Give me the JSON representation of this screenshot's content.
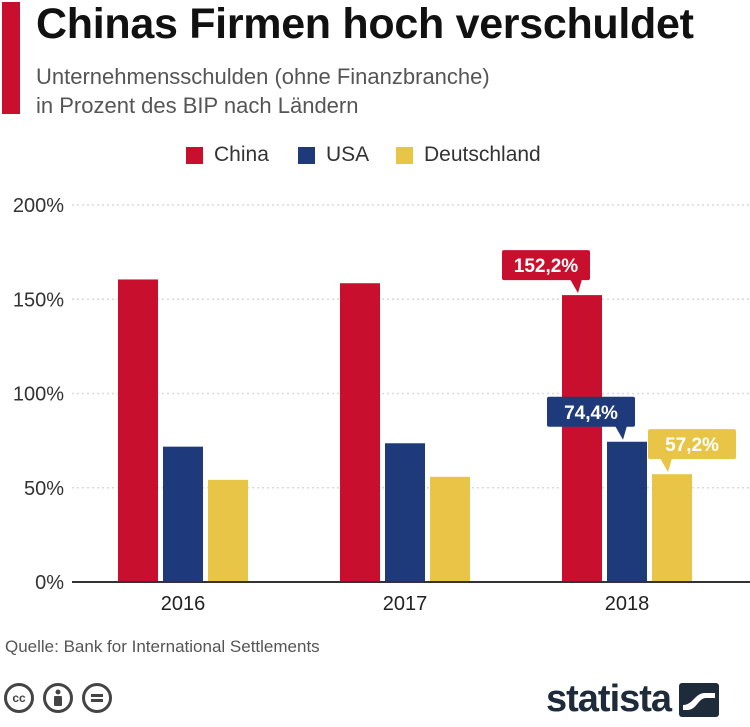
{
  "header": {
    "title": "Chinas Firmen hoch verschuldet",
    "subtitle_line1": "Unternehmensschulden (ohne Finanzbranche)",
    "subtitle_line2": "in Prozent des BIP nach Ländern"
  },
  "colors": {
    "china": "#c8102e",
    "usa": "#1f3a7a",
    "deutschland": "#e8c547",
    "accent": "#c8102e"
  },
  "chart_data": {
    "type": "bar",
    "categories": [
      "2016",
      "2017",
      "2018"
    ],
    "series": [
      {
        "name": "China",
        "values": [
          160.5,
          158.5,
          152.2
        ]
      },
      {
        "name": "USA",
        "values": [
          71.8,
          73.6,
          74.4
        ]
      },
      {
        "name": "Deutschland",
        "values": [
          54.2,
          55.8,
          57.2
        ]
      }
    ],
    "data_labels": [
      {
        "series": "China",
        "category": "2018",
        "text": "152,2%"
      },
      {
        "series": "USA",
        "category": "2018",
        "text": "74,4%"
      },
      {
        "series": "Deutschland",
        "category": "2018",
        "text": "57,2%"
      }
    ],
    "y_ticks": [
      0,
      50,
      100,
      150,
      200
    ],
    "y_tick_labels": [
      "0%",
      "50%",
      "100%",
      "150%",
      "200%"
    ],
    "ylim": [
      0,
      200
    ],
    "legend_position": "top-center",
    "grid": true
  },
  "footer": {
    "source": "Quelle: Bank for International Settlements",
    "brand": "statista"
  }
}
